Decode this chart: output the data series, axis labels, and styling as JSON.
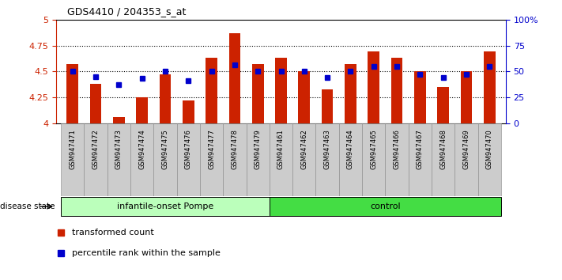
{
  "title": "GDS4410 / 204353_s_at",
  "samples": [
    "GSM947471",
    "GSM947472",
    "GSM947473",
    "GSM947474",
    "GSM947475",
    "GSM947476",
    "GSM947477",
    "GSM947478",
    "GSM947479",
    "GSM947461",
    "GSM947462",
    "GSM947463",
    "GSM947464",
    "GSM947465",
    "GSM947466",
    "GSM947467",
    "GSM947468",
    "GSM947469",
    "GSM947470"
  ],
  "bar_values": [
    4.57,
    4.38,
    4.06,
    4.25,
    4.47,
    4.22,
    4.63,
    4.87,
    4.57,
    4.63,
    4.5,
    4.33,
    4.57,
    4.69,
    4.63,
    4.5,
    4.35,
    4.5,
    4.69
  ],
  "dot_values": [
    50,
    45,
    37,
    43,
    50,
    41,
    50,
    56,
    50,
    50,
    50,
    44,
    50,
    55,
    55,
    47,
    44,
    47,
    55
  ],
  "bar_color": "#cc2200",
  "dot_color": "#0000cc",
  "groups": [
    {
      "label": "infantile-onset Pompe",
      "start": 0,
      "end": 9,
      "color": "#bbffbb"
    },
    {
      "label": "control",
      "start": 9,
      "end": 19,
      "color": "#44dd44"
    }
  ],
  "group_label": "disease state",
  "ylim_left": [
    4.0,
    5.0
  ],
  "ylim_right": [
    0,
    100
  ],
  "yticks_left": [
    4.0,
    4.25,
    4.5,
    4.75,
    5.0
  ],
  "yticks_right": [
    0,
    25,
    50,
    75,
    100
  ],
  "ytick_labels_left": [
    "4",
    "4.25",
    "4.5",
    "4.75",
    "5"
  ],
  "ytick_labels_right": [
    "0",
    "25",
    "50",
    "75",
    "100%"
  ],
  "hlines": [
    4.25,
    4.5,
    4.75
  ],
  "legend_items": [
    {
      "label": "transformed count",
      "color": "#cc2200"
    },
    {
      "label": "percentile rank within the sample",
      "color": "#0000cc"
    }
  ],
  "bar_width": 0.5,
  "xtick_bg": "#cccccc"
}
